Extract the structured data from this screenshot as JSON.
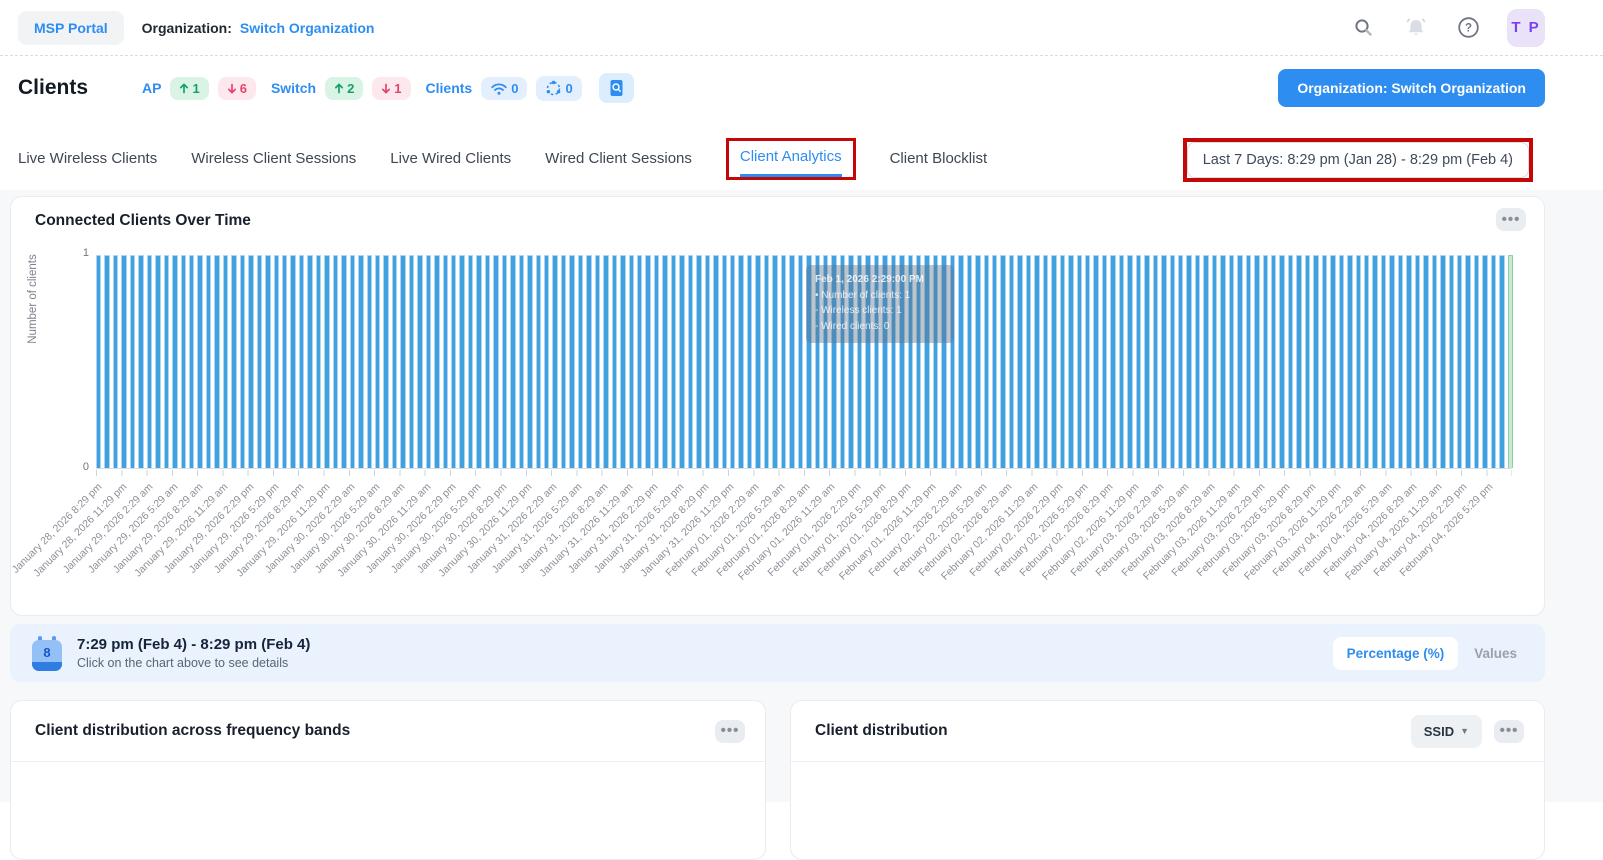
{
  "topbar": {
    "msp_portal": "MSP Portal",
    "org_label": "Organization:",
    "org_name": "Switch Organization",
    "avatar_initials": "T P"
  },
  "page_header": {
    "title": "Clients",
    "ap_label": "AP",
    "ap_up": "1",
    "ap_down": "6",
    "switch_label": "Switch",
    "switch_up": "2",
    "switch_down": "1",
    "clients_label": "Clients",
    "wireless_count": "0",
    "mesh_count": "0",
    "org_button_label": "Organization: Switch Organization"
  },
  "tabs": [
    "Live Wireless Clients",
    "Wireless Client Sessions",
    "Live Wired Clients",
    "Wired Client Sessions",
    "Client Analytics",
    "Client Blocklist"
  ],
  "active_tab": "Client Analytics",
  "date_range": "Last 7 Days: 8:29 pm (Jan 28) - 8:29 pm (Feb 4)",
  "chart_panel_title": "Connected Clients Over Time",
  "chart_data": {
    "type": "bar",
    "title": "Connected Clients Over Time",
    "xlabel": "",
    "ylabel": "Number of clients",
    "ylim": [
      0,
      1
    ],
    "yticks": [
      0,
      1
    ],
    "num_bars": 168,
    "uniform_value": 1,
    "bar_interval": "1 hour",
    "x_start": "January 28, 2026 8:29 pm",
    "x_end": "February 04, 2026 8:29 pm",
    "highlighted_last_bar": true,
    "x_tick_labels": [
      "January 28, 2026 8:29 pm",
      "January 28, 2026 11:29 pm",
      "January 29, 2026 2:29 am",
      "January 29, 2026 5:29 am",
      "January 29, 2026 8:29 am",
      "January 29, 2026 11:29 am",
      "January 29, 2026 2:29 pm",
      "January 29, 2026 5:29 pm",
      "January 29, 2026 8:29 pm",
      "January 29, 2026 11:29 pm",
      "January 30, 2026 2:29 am",
      "January 30, 2026 5:29 am",
      "January 30, 2026 8:29 am",
      "January 30, 2026 11:29 am",
      "January 30, 2026 2:29 pm",
      "January 30, 2026 5:29 pm",
      "January 30, 2026 8:29 pm",
      "January 30, 2026 11:29 pm",
      "January 31, 2026 2:29 am",
      "January 31, 2026 5:29 am",
      "January 31, 2026 8:29 am",
      "January 31, 2026 11:29 am",
      "January 31, 2026 2:29 pm",
      "January 31, 2026 5:29 pm",
      "January 31, 2026 8:29 pm",
      "January 31, 2026 11:29 pm",
      "February 01, 2026 2:29 am",
      "February 01, 2026 5:29 am",
      "February 01, 2026 8:29 am",
      "February 01, 2026 11:29 am",
      "February 01, 2026 2:29 pm",
      "February 01, 2026 5:29 pm",
      "February 01, 2026 8:29 pm",
      "February 01, 2026 11:29 pm",
      "February 02, 2026 2:29 am",
      "February 02, 2026 5:29 am",
      "February 02, 2026 8:29 am",
      "February 02, 2026 11:29 am",
      "February 02, 2026 2:29 pm",
      "February 02, 2026 5:29 pm",
      "February 02, 2026 8:29 pm",
      "February 02, 2026 11:29 pm",
      "February 03, 2026 2:29 am",
      "February 03, 2026 5:29 am",
      "February 03, 2026 8:29 am",
      "February 03, 2026 11:29 am",
      "February 03, 2026 2:29 pm",
      "February 03, 2026 5:29 pm",
      "February 03, 2026 8:29 pm",
      "February 03, 2026 11:29 pm",
      "February 04, 2026 2:29 am",
      "February 04, 2026 5:29 am",
      "February 04, 2026 8:29 am",
      "February 04, 2026 11:29 am",
      "February 04, 2026 2:29 pm",
      "February 04, 2026 5:29 pm"
    ],
    "tooltip": {
      "title": "Feb 1, 2026 2:29:00 PM",
      "lines": [
        "• Number of clients: 1",
        "- Wireless clients: 1",
        "- Wired clients: 0"
      ]
    }
  },
  "info_bar": {
    "calendar_day": "8",
    "title": "7:29 pm (Feb 4) - 8:29 pm (Feb 4)",
    "subtitle": "Click on the chart above to see details",
    "toggle": [
      "Percentage (%)",
      "Values"
    ]
  },
  "bottom_panels": {
    "left_title": "Client distribution across frequency bands",
    "right_title": "Client distribution",
    "ssid_dropdown": "SSID"
  },
  "colors": {
    "accent_blue": "#2e8df1",
    "bar_blue": "#41a0e0",
    "bar_highlight_green": "#c8e8d4",
    "badge_green": "#17a265",
    "badge_red": "#e5446d",
    "annotation_red": "#c40808",
    "info_bar_bg": "#e9f2fd",
    "avatar_purple": "#7a3ff2"
  }
}
